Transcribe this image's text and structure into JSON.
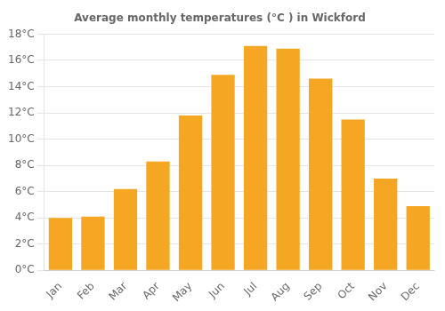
{
  "chart_data": {
    "type": "bar",
    "title": "Average monthly temperatures (°C ) in Wickford",
    "categories": [
      "Jan",
      "Feb",
      "Mar",
      "Apr",
      "May",
      "Jun",
      "Jul",
      "Aug",
      "Sep",
      "Oct",
      "Nov",
      "Dec"
    ],
    "values": [
      4.0,
      4.1,
      6.2,
      8.3,
      11.8,
      14.9,
      17.1,
      16.9,
      14.6,
      11.5,
      7.0,
      4.9
    ],
    "color": "#F5A623",
    "ylim": [
      0,
      18
    ],
    "yticks": [
      {
        "value": 0,
        "label": "0°C"
      },
      {
        "value": 2,
        "label": "2°C"
      },
      {
        "value": 4,
        "label": "4°C"
      },
      {
        "value": 6,
        "label": "6°C"
      },
      {
        "value": 8,
        "label": "8°C"
      },
      {
        "value": 10,
        "label": "10°C"
      },
      {
        "value": 12,
        "label": "12°C"
      },
      {
        "value": 14,
        "label": "14°C"
      },
      {
        "value": 16,
        "label": "16°C"
      },
      {
        "value": 18,
        "label": "18°C"
      }
    ],
    "grid": true
  }
}
